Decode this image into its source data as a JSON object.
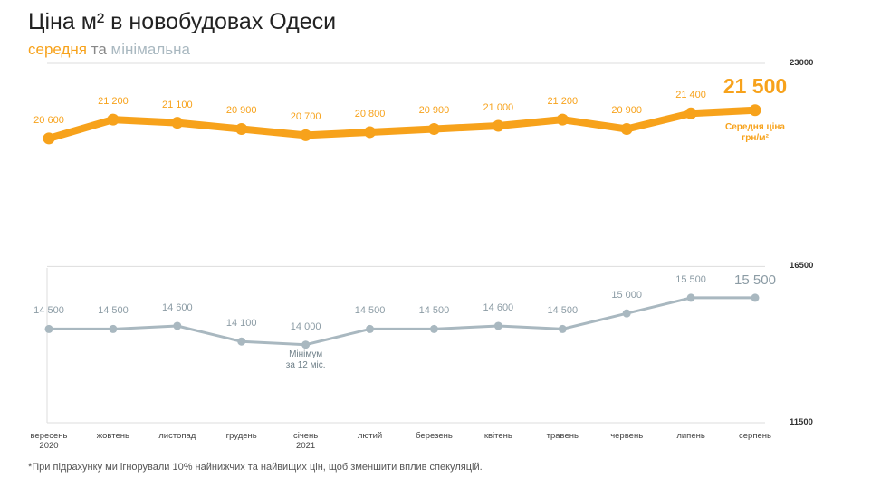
{
  "chart_data": {
    "type": "line",
    "title": "Ціна м² в новобудовах Одеси",
    "subtitle_conjunction": "та",
    "footnote": "*При підрахунку ми ігнорували 10% найнижчих та найвищих цін, щоб зменшити вплив спекуляцій.",
    "categories": [
      "вересень\n2020",
      "жовтень",
      "листопад",
      "грудень",
      "січень\n2021",
      "лютий",
      "березень",
      "квітень",
      "травень",
      "червень",
      "липень",
      "серпень"
    ],
    "series": [
      {
        "name": "середня",
        "color": "#f7a21b",
        "values": [
          20600,
          21200,
          21100,
          20900,
          20700,
          20800,
          20900,
          21000,
          21200,
          20900,
          21400,
          21500
        ],
        "value_labels": [
          "20 600",
          "21 200",
          "21 100",
          "20 900",
          "20 700",
          "20 800",
          "20 900",
          "21 000",
          "21 200",
          "20 900",
          "21 400",
          "21 500"
        ]
      },
      {
        "name": "мінімальна",
        "color": "#a9b8c0",
        "values": [
          14500,
          14500,
          14600,
          14100,
          14000,
          14500,
          14500,
          14600,
          14500,
          15000,
          15500,
          15500
        ],
        "value_labels": [
          "14 500",
          "14 500",
          "14 600",
          "14 100",
          "14 000",
          "14 500",
          "14 500",
          "14 600",
          "14 500",
          "15 000",
          "15 500",
          "15 500"
        ]
      }
    ],
    "annotations": [
      "Середня ціна\nгрн/м²",
      "Мінімум\nза 12 міс."
    ],
    "ylim": [
      11500,
      23000
    ],
    "yticks": [
      11500,
      16500,
      23000
    ],
    "grid": true
  }
}
